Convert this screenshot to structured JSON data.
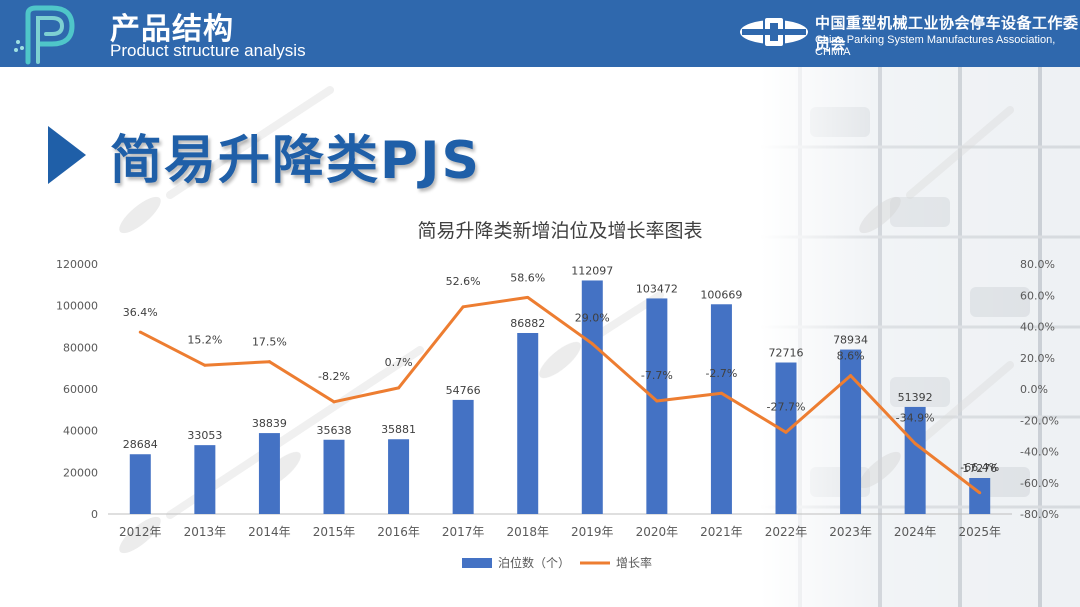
{
  "header": {
    "title": "产品结构",
    "subtitle": "Product structure analysis",
    "org_name_cn": "中国重型机械工业协会停车设备工作委员会",
    "org_name_en": "China Parking System Manufactures Association, CHMIA"
  },
  "section": {
    "title": "简易升降类PJS"
  },
  "colors": {
    "header_bg": "#2f68ad",
    "bar": "#4472c4",
    "line": "#ed7d31",
    "section_title": "#1f5fa8"
  },
  "icons": [
    "logo-p-icon",
    "org-logo-icon",
    "play-arrow-icon"
  ],
  "chart_data": {
    "type": "bar+line",
    "title": "简易升降类新增泊位及增长率图表",
    "categories": [
      "2012年",
      "2013年",
      "2014年",
      "2015年",
      "2016年",
      "2017年",
      "2018年",
      "2019年",
      "2020年",
      "2021年",
      "2022年",
      "2023年",
      "2024年",
      "2025年"
    ],
    "series": [
      {
        "name": "泊位数（个）",
        "type": "bar",
        "axis": "left",
        "values": [
          28684,
          33053,
          38839,
          35638,
          35881,
          54766,
          86882,
          112097,
          103472,
          100669,
          72716,
          78934,
          51392,
          17276
        ],
        "labels": [
          "28684",
          "33053",
          "38839",
          "35638",
          "35881",
          "54766",
          "86882",
          "112097",
          "103472",
          "100669",
          "72716",
          "78934",
          "51392",
          "17276"
        ]
      },
      {
        "name": "增长率",
        "type": "line",
        "axis": "right",
        "values": [
          36.4,
          15.2,
          17.5,
          -8.2,
          0.7,
          52.6,
          58.6,
          29.0,
          -7.7,
          -2.7,
          -27.7,
          8.6,
          -34.9,
          -66.4
        ],
        "labels": [
          "36.4%",
          "15.2%",
          "17.5%",
          "-8.2%",
          "0.7%",
          "52.6%",
          "58.6%",
          "29.0%",
          "-7.7%",
          "-2.7%",
          "-27.7%",
          "8.6%",
          "-34.9%",
          "-66.4%"
        ]
      }
    ],
    "y_left": {
      "min": 0,
      "max": 120000,
      "ticks": [
        "0",
        "20000",
        "40000",
        "60000",
        "80000",
        "100000",
        "120000"
      ]
    },
    "y_right": {
      "min": -80,
      "max": 80,
      "ticks": [
        "-80.0%",
        "-60.0%",
        "-40.0%",
        "-20.0%",
        "0.0%",
        "20.0%",
        "40.0%",
        "60.0%",
        "80.0%"
      ]
    },
    "legend": {
      "position": "bottom"
    },
    "grid": false
  }
}
